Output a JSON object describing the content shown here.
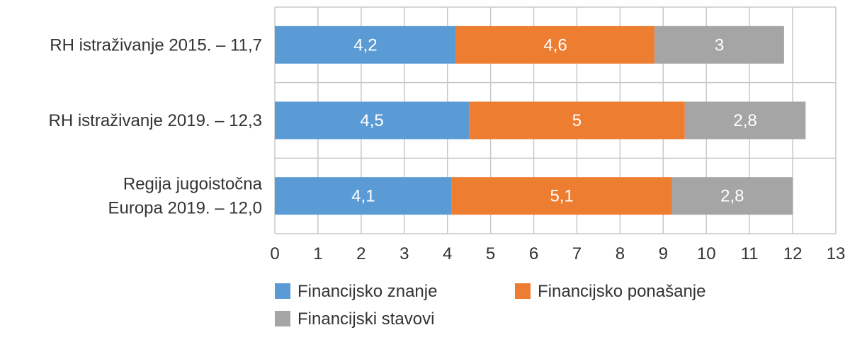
{
  "chart_data": {
    "type": "bar",
    "orientation": "horizontal",
    "stacked": true,
    "categories": [
      [
        "RH istraživanje 2015. – 11,7"
      ],
      [
        "RH istraživanje 2019. – 12,3"
      ],
      [
        "Regija jugoistočna",
        "Europa 2019. – 12,0"
      ]
    ],
    "series": [
      {
        "name": "Financijsko znanje",
        "color": "#5B9BD5",
        "values": [
          4.2,
          4.5,
          4.1
        ],
        "labels": [
          "4,2",
          "4,5",
          "4,1"
        ]
      },
      {
        "name": "Financijsko ponašanje",
        "color": "#ED7D31",
        "values": [
          4.6,
          5,
          5.1
        ],
        "labels": [
          "4,6",
          "5",
          "5,1"
        ]
      },
      {
        "name": "Financijski stavovi",
        "color": "#A5A5A5",
        "values": [
          3,
          2.8,
          2.8
        ],
        "labels": [
          "3",
          "2,8",
          "2,8"
        ]
      }
    ],
    "xlim": [
      0,
      13
    ],
    "xticks": [
      "0",
      "1",
      "2",
      "3",
      "4",
      "5",
      "6",
      "7",
      "8",
      "9",
      "10",
      "11",
      "12",
      "13"
    ],
    "grid": true,
    "legend": "bottom"
  }
}
